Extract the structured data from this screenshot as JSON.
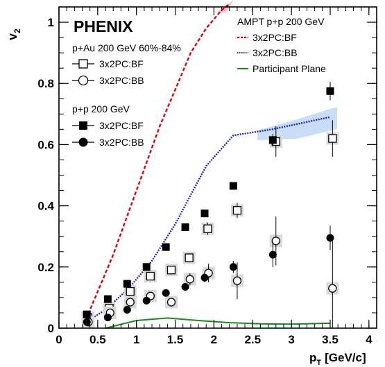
{
  "chart_data": {
    "type": "scatter",
    "xlabel": "p",
    "xlabel_sub": "T",
    "xlabel_unit": "[GeV/c]",
    "ylabel": "v",
    "ylabel_sub": "2",
    "xlim": [
      0,
      4.1
    ],
    "ylim": [
      0,
      1.05
    ],
    "x_ticks": [
      "0",
      "0.5",
      "1",
      "1.5",
      "2",
      "2.5",
      "3",
      "3.5",
      "4"
    ],
    "y_ticks": [
      "0",
      "0.2",
      "0.4",
      "0.6",
      "0.8",
      "1"
    ],
    "legend_placement": "top-left and top-right",
    "texts": {
      "experiment": "PHENIX",
      "pau_header": "p+Au 200 GeV 60%-84%",
      "pp_header": "p+p 200 GeV",
      "ampt_header": "AMPT p+p 200 GeV"
    },
    "series": [
      {
        "name": "3x2PC:BF",
        "group": "p+Au",
        "marker": "open-square",
        "x": [
          0.37,
          0.65,
          0.92,
          1.18,
          1.45,
          1.68,
          1.92,
          2.3,
          2.8,
          3.53
        ],
        "y": [
          0.035,
          0.065,
          0.12,
          0.17,
          0.19,
          0.23,
          0.325,
          0.385,
          0.61,
          0.62
        ],
        "err": [
          0.01,
          0.01,
          0.012,
          0.012,
          0.012,
          0.015,
          0.02,
          0.025,
          0.05,
          0.06
        ]
      },
      {
        "name": "3x2PC:BB",
        "group": "p+Au",
        "marker": "open-circle",
        "x": [
          0.38,
          0.66,
          0.92,
          1.18,
          1.45,
          1.69,
          1.93,
          2.3,
          2.8,
          3.53
        ],
        "y": [
          0.02,
          0.05,
          0.085,
          0.105,
          0.085,
          0.16,
          0.18,
          0.155,
          0.285,
          0.13
        ],
        "err": [
          0.01,
          0.01,
          0.01,
          0.01,
          0.012,
          0.02,
          0.03,
          0.06,
          0.08,
          0.16
        ]
      },
      {
        "name": "3x2PC:BF",
        "group": "p+p",
        "marker": "filled-square",
        "x": [
          0.36,
          0.63,
          0.88,
          1.13,
          1.38,
          1.63,
          1.88,
          2.25,
          2.76,
          3.5
        ],
        "y": [
          0.045,
          0.095,
          0.145,
          0.2,
          0.265,
          0.33,
          0.375,
          0.465,
          0.615,
          0.775
        ],
        "err": [
          0.005,
          0.005,
          0.006,
          0.007,
          0.008,
          0.009,
          0.01,
          0.012,
          0.02,
          0.03
        ]
      },
      {
        "name": "3x2PC:BB",
        "group": "p+p",
        "marker": "filled-circle",
        "x": [
          0.36,
          0.63,
          0.88,
          1.13,
          1.38,
          1.63,
          1.88,
          2.25,
          2.76,
          3.5
        ],
        "y": [
          0.02,
          0.035,
          0.06,
          0.09,
          0.115,
          0.135,
          0.165,
          0.2,
          0.24,
          0.295
        ],
        "err": [
          0.005,
          0.005,
          0.006,
          0.007,
          0.01,
          0.012,
          0.015,
          0.02,
          0.04,
          0.04
        ]
      }
    ],
    "ampt": [
      {
        "name": "3x2PC:BF",
        "style": "dashed",
        "color": "#e8000b",
        "x": [
          0.35,
          0.5,
          0.7,
          0.9,
          1.1,
          1.3,
          1.5,
          1.7,
          1.9,
          2.1,
          2.2
        ],
        "y": [
          0.03,
          0.12,
          0.24,
          0.38,
          0.52,
          0.66,
          0.78,
          0.9,
          0.98,
          1.04,
          1.06
        ]
      },
      {
        "name": "3x2PC:BB",
        "style": "dotted",
        "color": "#1f22c8",
        "x": [
          0.35,
          0.6,
          0.9,
          1.2,
          1.5,
          1.9,
          2.25,
          2.75,
          3.5
        ],
        "y": [
          0.02,
          0.06,
          0.13,
          0.22,
          0.34,
          0.53,
          0.63,
          0.65,
          0.69
        ]
      },
      {
        "name": "Participant Plane",
        "style": "solid",
        "color": "#1a8a1a",
        "x": [
          0.6,
          1.0,
          1.4,
          1.8,
          2.2,
          2.6,
          3.0,
          3.5
        ],
        "y": [
          0.0,
          0.025,
          0.033,
          0.025,
          0.018,
          0.014,
          0.013,
          0.016
        ]
      }
    ]
  }
}
